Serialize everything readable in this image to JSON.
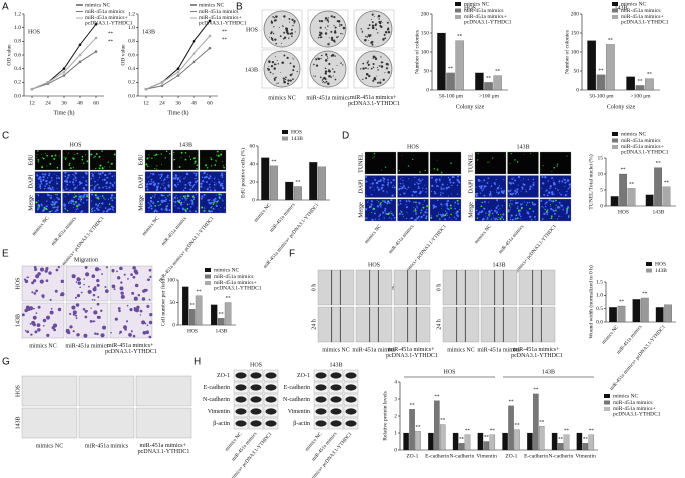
{
  "figure": {
    "panel_letters": [
      "A",
      "B",
      "C",
      "D",
      "E",
      "F",
      "G",
      "H"
    ],
    "b_images": {
      "rows": [
        "HOS",
        "143B"
      ],
      "cols": [
        "mimics NC",
        "miR-451a mimics",
        "miR-451a mimics+ pcDNA3.1-YTHDC1"
      ]
    },
    "c_images": {
      "groups": [
        "HOS",
        "143B"
      ],
      "rows": [
        "EdU",
        "DAPI",
        "Merge"
      ],
      "cols": [
        "mimics NC",
        "miR-451a mimics",
        "miR-451a mimics+ pcDNA3.1-YTHDC1"
      ]
    },
    "d_images": {
      "groups": [
        "HOS",
        "143B"
      ],
      "rows": [
        "TUNEL",
        "DAPI",
        "Merge"
      ],
      "cols": [
        "mimics NC",
        "miR-451a mimics",
        "miR-451a mimics+ pcDNA3.1-YTHDC1"
      ]
    },
    "e_images": {
      "title": "Migration",
      "rows": [
        "HOS",
        "143B"
      ],
      "cols": [
        "mimics NC",
        "miR-451a mimics",
        "miR-451a mimics+ pcDNA3.1-YTHDC1"
      ]
    },
    "f_images": {
      "groups": [
        "HOS",
        "143B"
      ],
      "rows": [
        "0 h",
        "24 h"
      ],
      "cols": [
        "mimics NC",
        "miR-451a mimics",
        "miR-451a mimics+ pcDNA3.1-YTHDC1"
      ]
    },
    "g_images": {
      "rows": [
        "HOS",
        "143B"
      ],
      "cols": [
        "mimics NC",
        "miR-451a mimics",
        "miR-451a mimics+ pcDNA3.1-YTHDC1"
      ]
    },
    "h_blots": {
      "groups": [
        "HOS",
        "143B"
      ],
      "rows": [
        "ZO-1",
        "E-cadherin",
        "N-cadherin",
        "Vimentin",
        "β-actin"
      ],
      "cols": [
        "mimics NC",
        "miR-451a mimics",
        "miR-451a mimics+ pcDNA3.1-YTHDC1"
      ]
    }
  },
  "chart_data": [
    {
      "type": "line",
      "subtitle": "HOS",
      "x": [
        12,
        24,
        36,
        48,
        60
      ],
      "xlim": [
        6,
        66
      ],
      "xticks": [
        12,
        24,
        36,
        48,
        60
      ],
      "xlabel": "Time (h)",
      "ylabel": "OD value",
      "ylim": [
        0,
        1.2
      ],
      "yticks": [
        {
          "value": 0,
          "label": "0.0"
        },
        {
          "value": 0.2,
          "label": "0.2"
        },
        {
          "value": 0.4,
          "label": "0.4"
        },
        {
          "value": 0.6,
          "label": "0.6"
        },
        {
          "value": 0.8,
          "label": "0.8"
        },
        {
          "value": 1,
          "label": "1.0"
        },
        {
          "value": 1.2,
          "label": "1.2"
        }
      ],
      "series": [
        {
          "name": "mimics NC",
          "color": "#111111",
          "values": [
            0.1,
            0.2,
            0.4,
            0.75,
            1.05
          ]
        },
        {
          "name": "miR-451a mimics",
          "color": "#777777",
          "values": [
            0.1,
            0.18,
            0.3,
            0.5,
            0.65
          ]
        },
        {
          "name": "miR-451a mimics+ pcDNA3.1-YTHDC1",
          "color": "#aaaaaa",
          "values": [
            0.1,
            0.2,
            0.35,
            0.6,
            0.85
          ]
        }
      ],
      "annotations": [
        "**",
        "**"
      ]
    },
    {
      "type": "line",
      "subtitle": "143B",
      "x": [
        12,
        24,
        36,
        48,
        60
      ],
      "xlim": [
        6,
        66
      ],
      "xticks": [
        12,
        24,
        36,
        48,
        60
      ],
      "xlabel": "Time (h)",
      "ylabel": "OD value",
      "ylim": [
        0,
        1.2
      ],
      "yticks": [
        {
          "value": 0,
          "label": "0.0"
        },
        {
          "value": 0.2,
          "label": "0.2"
        },
        {
          "value": 0.4,
          "label": "0.4"
        },
        {
          "value": 0.6,
          "label": "0.6"
        },
        {
          "value": 0.8,
          "label": "0.8"
        },
        {
          "value": 1,
          "label": "1.0"
        },
        {
          "value": 1.2,
          "label": "1.2"
        }
      ],
      "series": [
        {
          "name": "mimics NC",
          "color": "#111111",
          "values": [
            0.1,
            0.2,
            0.4,
            0.8,
            1.1
          ]
        },
        {
          "name": "miR-451a mimics",
          "color": "#777777",
          "values": [
            0.1,
            0.15,
            0.3,
            0.5,
            0.7
          ]
        },
        {
          "name": "miR-451a mimics+ pcDNA3.1-YTHDC1",
          "color": "#aaaaaa",
          "values": [
            0.1,
            0.2,
            0.35,
            0.62,
            0.88
          ]
        }
      ],
      "annotations": [
        "**",
        "**"
      ]
    },
    {
      "type": "bar",
      "title": "HOS",
      "categories": [
        "50-100 μm",
        ">100 μm"
      ],
      "xlabel": "Colony size",
      "ylabel": "Number of colonies",
      "ylim": [
        0,
        200
      ],
      "yticks": [
        0,
        50,
        100,
        150,
        200
      ],
      "series": [
        {
          "name": "mimics NC",
          "color": "#111111",
          "values": [
            150,
            45
          ]
        },
        {
          "name": "miR-451a mimics",
          "color": "#777777",
          "values": [
            45,
            20
          ]
        },
        {
          "name": "miR-451a mimics+ pcDNA3.1-YTHDC1",
          "color": "#aaaaaa",
          "values": [
            130,
            38
          ]
        }
      ],
      "annotations": [
        "**",
        "**",
        "**",
        "**"
      ]
    },
    {
      "type": "bar",
      "title": "143B",
      "categories": [
        "50-100 μm",
        ">100 μm"
      ],
      "xlabel": "Colony size",
      "ylabel": "Number of colonies",
      "ylim": [
        0,
        200
      ],
      "yticks": [
        0,
        50,
        100,
        150,
        200
      ],
      "series": [
        {
          "name": "mimics NC",
          "color": "#111111",
          "values": [
            130,
            35
          ]
        },
        {
          "name": "miR-451a mimics",
          "color": "#777777",
          "values": [
            40,
            12
          ]
        },
        {
          "name": "miR-451a mimics+ pcDNA3.1-YTHDC1",
          "color": "#aaaaaa",
          "values": [
            120,
            30
          ]
        }
      ],
      "annotations": [
        "**",
        "**",
        "**",
        "**"
      ]
    },
    {
      "type": "bar",
      "categories": [
        "mimics NC",
        "miR-451a mimics",
        "miR-451a mimics+ pcDNA3.1-YTHDC1"
      ],
      "ylabel": "EdU positive cells (%)",
      "ylim": [
        0,
        60
      ],
      "yticks": [
        0,
        20,
        40,
        60
      ],
      "series": [
        {
          "name": "HOS",
          "color": "#111111",
          "values": [
            47,
            20,
            42
          ]
        },
        {
          "name": "143B",
          "color": "#999999",
          "values": [
            38,
            15,
            37
          ]
        }
      ],
      "annotations": [
        "**",
        "**"
      ]
    },
    {
      "type": "bar",
      "categories": [
        "HOS",
        "143B"
      ],
      "ylabel": "TUNEL/Total nuclei (%)",
      "ylim": [
        0,
        15
      ],
      "yticks": [
        0,
        5,
        10,
        15
      ],
      "series": [
        {
          "name": "mimics NC",
          "color": "#111111",
          "values": [
            3,
            3.5
          ]
        },
        {
          "name": "miR-451a mimics",
          "color": "#777777",
          "values": [
            10,
            12
          ]
        },
        {
          "name": "miR-451a mimics+ pcDNA3.1-YTHDC1",
          "color": "#aaaaaa",
          "values": [
            5.5,
            6
          ]
        }
      ],
      "annotations": [
        "**",
        "**",
        "**",
        "**"
      ]
    },
    {
      "type": "bar",
      "categories": [
        "HOS",
        "143B"
      ],
      "ylabel": "Cell number per field",
      "ylim": [
        0,
        100
      ],
      "yticks": [
        0,
        50,
        100
      ],
      "series": [
        {
          "name": "mimics NC",
          "color": "#111111",
          "values": [
            85,
            45
          ]
        },
        {
          "name": "miR-451a mimics",
          "color": "#777777",
          "values": [
            35,
            15
          ]
        },
        {
          "name": "miR-451a mimics+ pcDNA3.1-YTHDC1",
          "color": "#aaaaaa",
          "values": [
            65,
            50
          ]
        }
      ],
      "annotations": [
        "**",
        "**",
        "**",
        "**"
      ]
    },
    {
      "type": "bar",
      "categories": [
        "mimics NC",
        "miR-451a mimics",
        "miR-451a mimics+ pcDNA3.1-YTHDC1"
      ],
      "ylabel": "Wound width (normalized to 0 h)",
      "ylim": [
        0,
        1.5
      ],
      "yticks": [
        {
          "value": 0,
          "label": "0.0"
        },
        {
          "value": 0.5,
          "label": "0.5"
        },
        {
          "value": 1,
          "label": "1.0"
        },
        {
          "value": 1.5,
          "label": "1.5"
        }
      ],
      "series": [
        {
          "name": "HOS",
          "color": "#111111",
          "values": [
            0.55,
            0.85,
            0.55
          ]
        },
        {
          "name": "143B",
          "color": "#999999",
          "values": [
            0.6,
            0.9,
            0.65
          ]
        }
      ],
      "annotations": [
        "**",
        "**"
      ]
    },
    {
      "type": "bar",
      "categories": [
        "ZO-1",
        "E-cadherin",
        "N-cadherin",
        "Vimentin",
        "ZO-1",
        "E-cadherin",
        "N-cadherin",
        "Vimentin"
      ],
      "group_labels": [
        "HOS",
        "143B"
      ],
      "ylabel": "Relative protein levels",
      "ylim": [
        0,
        4
      ],
      "yticks": [
        0,
        1,
        2,
        3,
        4
      ],
      "series": [
        {
          "name": "mimics NC",
          "color": "#111111",
          "values": [
            1,
            1,
            1,
            1,
            1,
            1,
            1,
            1
          ]
        },
        {
          "name": "miR-451a mimics",
          "color": "#777777",
          "values": [
            2.4,
            2.9,
            0.4,
            0.5,
            2.6,
            3.3,
            0.4,
            0.4
          ]
        },
        {
          "name": "miR-451a mimics+ pcDNA3.1-YTHDC1",
          "color": "#bbbbbb",
          "values": [
            1.1,
            1.5,
            0.9,
            0.9,
            1.2,
            1.4,
            0.9,
            0.9
          ]
        }
      ],
      "annotations": [
        "**",
        "**",
        "**",
        "**",
        "**",
        "**",
        "**",
        "**",
        "**",
        "**",
        "**",
        "**",
        "**",
        "**",
        "**",
        "**"
      ]
    }
  ]
}
